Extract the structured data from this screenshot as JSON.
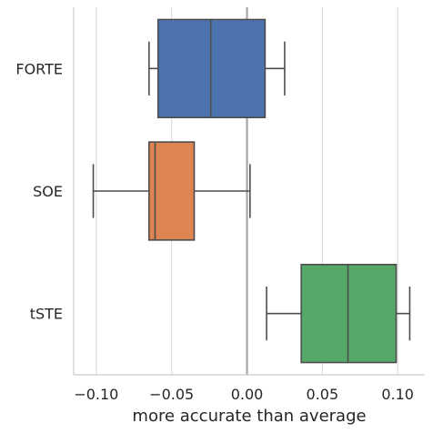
{
  "chart_data": {
    "type": "boxplot",
    "orientation": "horizontal",
    "title": "",
    "xlabel": "more accurate than average",
    "ylabel": "",
    "xlim": [
      -0.115,
      0.118
    ],
    "x_ticks": [
      -0.1,
      -0.05,
      0.0,
      0.05,
      0.1
    ],
    "x_tick_labels": [
      "−0.10",
      "−0.05",
      "0.00",
      "0.05",
      "0.10"
    ],
    "grid": "vertical",
    "reference_line_x": 0.0,
    "categories": [
      "FORTE",
      "SOE",
      "tSTE"
    ],
    "boxes": [
      {
        "category": "FORTE",
        "whisker_low": -0.065,
        "q1": -0.059,
        "median": -0.024,
        "q3": 0.012,
        "whisker_high": 0.025,
        "color": "#4c72b0"
      },
      {
        "category": "SOE",
        "whisker_low": -0.102,
        "q1": -0.065,
        "median": -0.061,
        "q3": -0.035,
        "whisker_high": 0.002,
        "color": "#dd8452"
      },
      {
        "category": "tSTE",
        "whisker_low": 0.013,
        "q1": 0.036,
        "median": 0.067,
        "q3": 0.099,
        "whisker_high": 0.108,
        "color": "#55a868"
      }
    ]
  }
}
